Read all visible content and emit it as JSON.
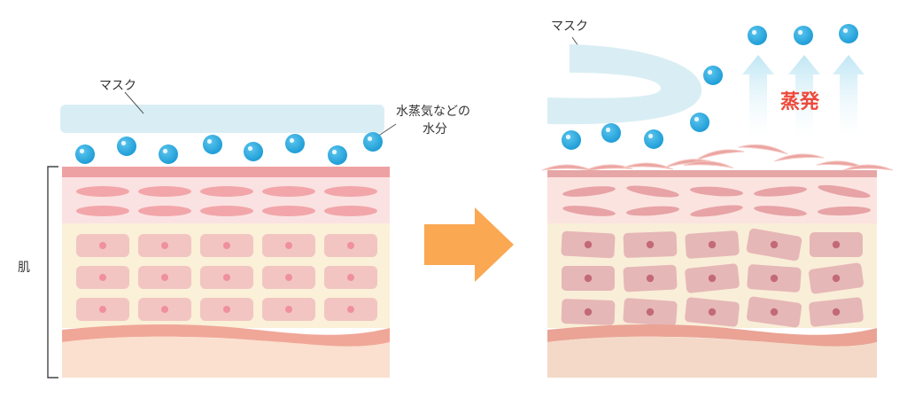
{
  "labels": {
    "mask_left": "マスク",
    "moisture_line1": "水蒸気などの",
    "moisture_line2": "水分",
    "skin": "肌",
    "mask_right": "マスク",
    "evaporation": "蒸発"
  },
  "colors": {
    "mask": "#d9eef4",
    "droplet": "#2aa9e0",
    "skin_top": "#eea1a3",
    "dermis_band": "#fbe2e2",
    "cell_band": "#fbf0d8",
    "basal_band": "#f0a798",
    "subcutis": "#fbdfcf",
    "arrow": "#fba853",
    "evaporation_text": "#ee4a3b",
    "arrow_up": "#c8e9f5"
  },
  "icons": {
    "transition": "right-arrow-icon",
    "evaporation": "up-arrow-icon"
  }
}
